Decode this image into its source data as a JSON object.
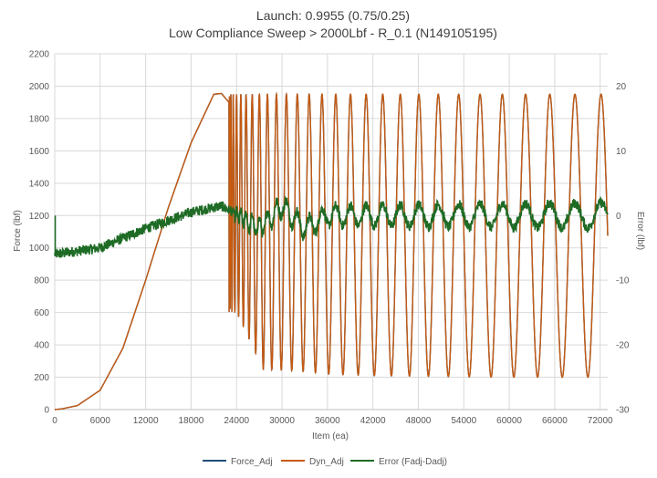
{
  "chart_data": {
    "type": "line",
    "title_line1": "Launch: 0.9955 (0.75/0.25)",
    "title_line2": "Low Compliance Sweep > 2000Lbf - R_0.1 (N149105195)",
    "xlabel": "Item (ea)",
    "ylabel_left": "Force (lbf)",
    "ylabel_right": "Error (lbf)",
    "xlim": [
      0,
      73000
    ],
    "ylim_left": [
      0,
      2200
    ],
    "ylim_right": [
      -30,
      25
    ],
    "x_ticks": [
      0,
      6000,
      12000,
      18000,
      24000,
      30000,
      36000,
      42000,
      48000,
      54000,
      60000,
      66000,
      72000
    ],
    "y_ticks_left": [
      0,
      200,
      400,
      600,
      800,
      1000,
      1200,
      1400,
      1600,
      1800,
      2000,
      2200
    ],
    "y_ticks_right": [
      -30,
      -20,
      -10,
      0,
      10,
      20
    ],
    "grid": true,
    "legend_position": "bottom",
    "colors": {
      "force": "#1f4e79",
      "dyn": "#c55a11",
      "error": "#1e6b25"
    },
    "series": [
      {
        "name": "Force_Adj",
        "axis": "left",
        "description_values": "overlaps Dyn_Adj",
        "envelope": [
          [
            0,
            0
          ],
          [
            1000,
            5
          ],
          [
            3000,
            25
          ],
          [
            6000,
            120
          ],
          [
            9000,
            380
          ],
          [
            12000,
            800
          ],
          [
            15000,
            1250
          ],
          [
            18000,
            1650
          ],
          [
            21000,
            1950
          ],
          [
            22000,
            1955
          ],
          [
            23000,
            1900
          ]
        ],
        "sweep": {
          "start_x": 23000,
          "end_x": 73000,
          "max": 1950,
          "min_envelope": [
            [
              24000,
              600
            ],
            [
              27500,
              250
            ],
            [
              32000,
              240
            ],
            [
              36000,
              220
            ],
            [
              42000,
              210
            ],
            [
              50000,
              205
            ],
            [
              60000,
              200
            ],
            [
              73000,
              200
            ]
          ],
          "trough_count": 28
        }
      },
      {
        "name": "Dyn_Adj",
        "axis": "left",
        "envelope": [
          [
            0,
            0
          ],
          [
            1000,
            5
          ],
          [
            3000,
            25
          ],
          [
            6000,
            120
          ],
          [
            9000,
            380
          ],
          [
            12000,
            800
          ],
          [
            15000,
            1250
          ],
          [
            18000,
            1650
          ],
          [
            21000,
            1950
          ],
          [
            22000,
            1955
          ],
          [
            23000,
            1900
          ]
        ],
        "sweep": {
          "start_x": 23000,
          "end_x": 73000,
          "max": 1950,
          "min_envelope": [
            [
              24000,
              600
            ],
            [
              27500,
              250
            ],
            [
              32000,
              240
            ],
            [
              36000,
              220
            ],
            [
              42000,
              210
            ],
            [
              50000,
              205
            ],
            [
              60000,
              200
            ],
            [
              73000,
              200
            ]
          ],
          "trough_count": 28
        }
      },
      {
        "name": "Error (Fadj-Dadj)",
        "axis": "right",
        "baseline": [
          [
            0,
            -6
          ],
          [
            6000,
            -5
          ],
          [
            12000,
            -2
          ],
          [
            18000,
            0.5
          ],
          [
            22000,
            1.5
          ],
          [
            27000,
            -2
          ],
          [
            30000,
            1.5
          ],
          [
            33000,
            -2
          ],
          [
            36000,
            0
          ],
          [
            45000,
            0
          ],
          [
            73000,
            0
          ]
        ],
        "oscillation_amplitude": [
          [
            0,
            0
          ],
          [
            22000,
            0
          ],
          [
            26000,
            1.5
          ],
          [
            35000,
            1.5
          ],
          [
            73000,
            2
          ]
        ],
        "noise": 0.8,
        "start_spike": 0
      }
    ]
  }
}
